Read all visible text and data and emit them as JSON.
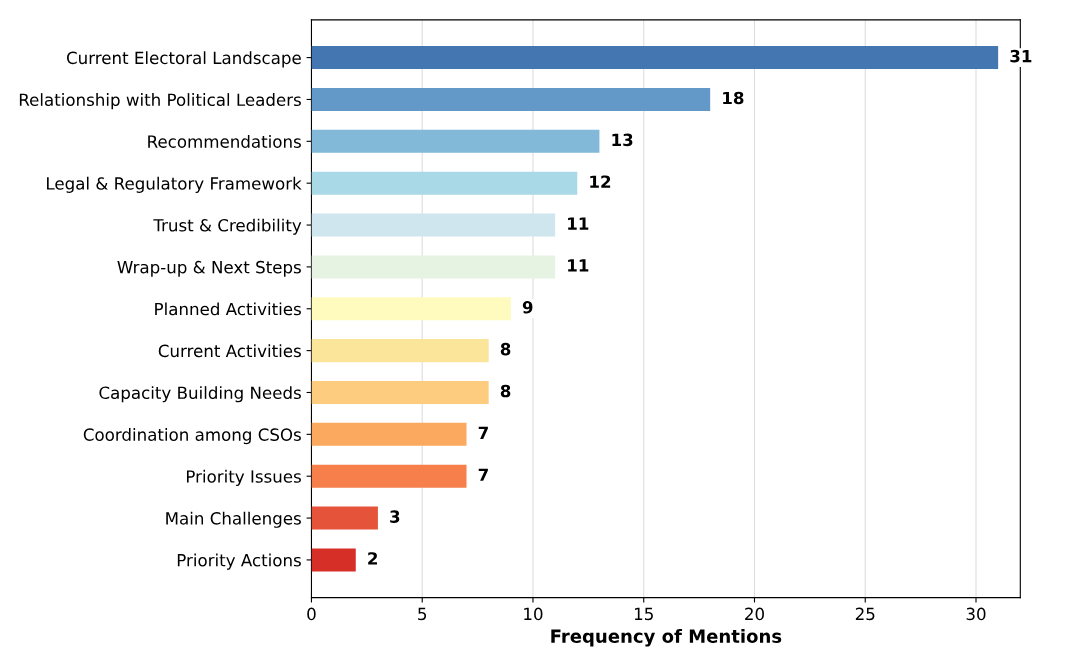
{
  "chart_data": {
    "type": "bar",
    "orientation": "horizontal",
    "xlabel": "Frequency of Mentions",
    "categories": [
      "Current Electoral Landscape",
      "Relationship with Political Leaders",
      "Recommendations",
      "Legal & Regulatory Framework",
      "Trust & Credibility",
      "Wrap-up & Next Steps",
      "Planned Activities",
      "Current Activities",
      "Capacity Building Needs",
      "Coordination among CSOs",
      "Priority Issues",
      "Main Challenges",
      "Priority Actions"
    ],
    "values": [
      31,
      18,
      13,
      12,
      11,
      11,
      9,
      8,
      8,
      7,
      7,
      3,
      2
    ],
    "colors": [
      "#4477b2",
      "#6399c8",
      "#82b9d9",
      "#a9d8e6",
      "#cfe6ef",
      "#e6f3e3",
      "#fffabe",
      "#fae59a",
      "#fdcc7f",
      "#faa95f",
      "#f67f4b",
      "#e5533a",
      "#d62f27"
    ],
    "xlim": [
      0,
      32
    ],
    "xticks": [
      0,
      5,
      10,
      15,
      20,
      25,
      30
    ],
    "grid": "x",
    "data_labels": true
  }
}
